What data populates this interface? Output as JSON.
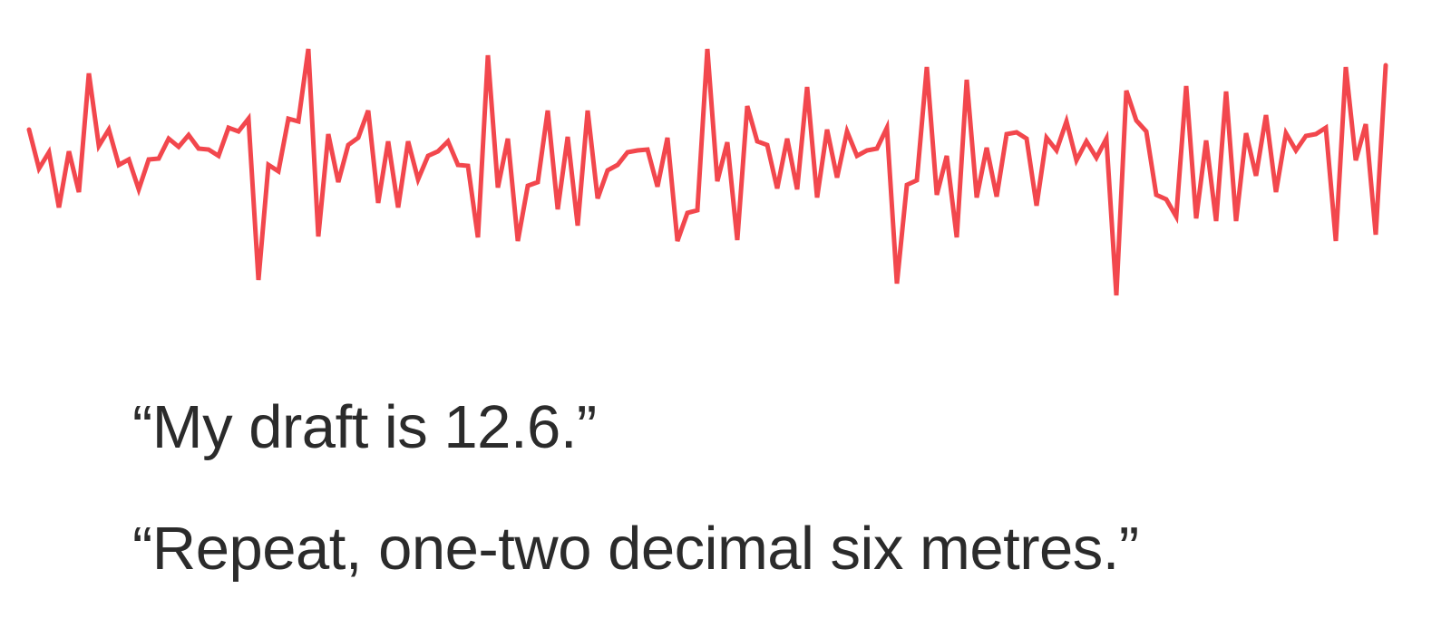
{
  "waveform": {
    "color": "#f2474d"
  },
  "transcript": {
    "line_1": "“My draft is 12.6.”",
    "line_2": "“Repeat, one-two decimal six metres.”"
  }
}
